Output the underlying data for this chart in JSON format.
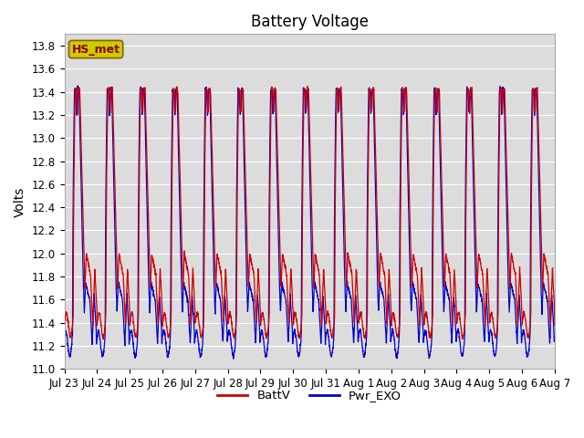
{
  "title": "Battery Voltage",
  "ylabel": "Volts",
  "ylim": [
    11.0,
    13.9
  ],
  "yticks": [
    11.0,
    11.2,
    11.4,
    11.6,
    11.8,
    12.0,
    12.2,
    12.4,
    12.6,
    12.8,
    13.0,
    13.2,
    13.4,
    13.6,
    13.8
  ],
  "xtick_labels": [
    "Jul 23",
    "Jul 24",
    "Jul 25",
    "Jul 26",
    "Jul 27",
    "Jul 28",
    "Jul 29",
    "Jul 30",
    "Jul 31",
    "Aug 1",
    "Aug 2",
    "Aug 3",
    "Aug 4",
    "Aug 5",
    "Aug 6",
    "Aug 7"
  ],
  "color_red": "#CC0000",
  "color_blue": "#0000CC",
  "legend_labels": [
    "BattV",
    "Pwr_EXO"
  ],
  "annotation_text": "HS_met",
  "annotation_bg": "#CCCC00",
  "plot_bg": "#DCDCDC",
  "title_fontsize": 12,
  "label_fontsize": 10,
  "tick_fontsize": 8.5
}
